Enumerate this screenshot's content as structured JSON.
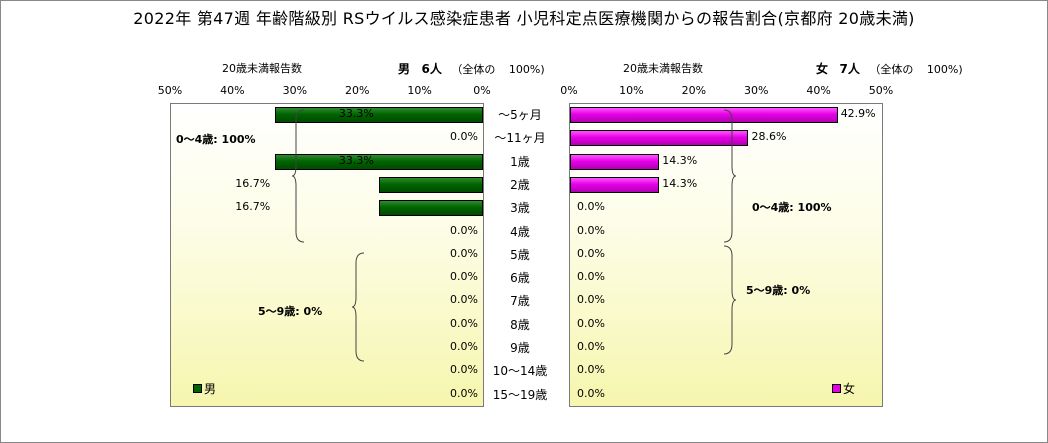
{
  "title": "2022年 第47週 年齢階級別 RSウイルス感染症患者 小児科定点医療機関からの報告割合(京都府 20歳未満)",
  "left_panel": {
    "count_label": "20歳未満報告数",
    "sex": "男",
    "count": "6人",
    "total_label": "（全体の",
    "total_pct": "100%)",
    "legend": "男"
  },
  "right_panel": {
    "count_label": "20歳未満報告数",
    "sex": "女",
    "count": "7人",
    "total_label": "（全体の",
    "total_pct": "100%)",
    "legend": "女"
  },
  "left_ticks": [
    "50%",
    "40%",
    "30%",
    "20%",
    "10%",
    "0%"
  ],
  "right_ticks": [
    "0%",
    "10%",
    "20%",
    "30%",
    "40%",
    "50%"
  ],
  "annotations": {
    "male_0_4": "0～4歳: 100%",
    "male_5_9": "5～9歳: 0%",
    "female_0_4": "0～4歳: 100%",
    "female_5_9": "5～9歳: 0%"
  },
  "colors": {
    "male": "#006400",
    "female": "#e600e6"
  },
  "chart_data": {
    "type": "bar",
    "orientation": "horizontal",
    "layout": "population-pyramid",
    "categories": [
      "～5ヶ月",
      "～11ヶ月",
      "1歳",
      "2歳",
      "3歳",
      "4歳",
      "5歳",
      "6歳",
      "7歳",
      "8歳",
      "9歳",
      "10～14歳",
      "15～19歳"
    ],
    "xlim": [
      0,
      50
    ],
    "series": [
      {
        "name": "男",
        "values": [
          33.3,
          0.0,
          33.3,
          16.7,
          16.7,
          0.0,
          0.0,
          0.0,
          0.0,
          0.0,
          0.0,
          0.0,
          0.0
        ],
        "labels": [
          "33.3%",
          "0.0%",
          "33.3%",
          "16.7%",
          "16.7%",
          "0.0%",
          "0.0%",
          "0.0%",
          "0.0%",
          "0.0%",
          "0.0%",
          "0.0%",
          "0.0%"
        ]
      },
      {
        "name": "女",
        "values": [
          42.9,
          28.6,
          14.3,
          14.3,
          0.0,
          0.0,
          0.0,
          0.0,
          0.0,
          0.0,
          0.0,
          0.0,
          0.0
        ],
        "labels": [
          "42.9%",
          "28.6%",
          "14.3%",
          "14.3%",
          "0.0%",
          "0.0%",
          "0.0%",
          "0.0%",
          "0.0%",
          "0.0%",
          "0.0%",
          "0.0%",
          "0.0%"
        ]
      }
    ]
  }
}
